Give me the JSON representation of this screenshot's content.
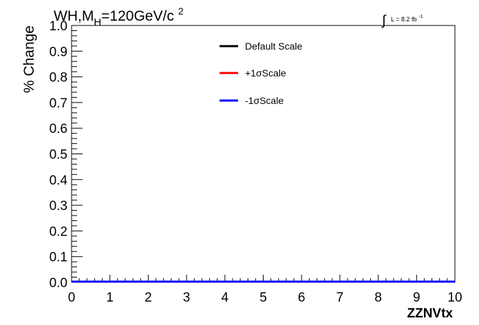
{
  "chart_data": {
    "type": "line",
    "title_main": "WH,M",
    "title_sub": "H",
    "title_rest": "=120GeV/c",
    "title_sup": "2",
    "lumi_integral": "∫",
    "lumi_label": "L = 8.2 fb",
    "lumi_sup": "-1",
    "xlabel": "ZZNVtx",
    "ylabel": "% Change",
    "xlim": [
      0,
      10
    ],
    "ylim": [
      0,
      1
    ],
    "xticks": [
      "0",
      "1",
      "2",
      "3",
      "4",
      "5",
      "6",
      "7",
      "8",
      "9",
      "10"
    ],
    "yticks": [
      "0.0",
      "0.1",
      "0.2",
      "0.3",
      "0.4",
      "0.5",
      "0.6",
      "0.7",
      "0.8",
      "0.9",
      "1.0"
    ],
    "legend_position": "top-center",
    "x": [
      0,
      10
    ],
    "series": [
      {
        "name": "Default Scale",
        "color": "#000000",
        "values": [
          0,
          0
        ]
      },
      {
        "name": "+1σScale",
        "color": "#ff0000",
        "values": [
          0,
          0
        ]
      },
      {
        "name": "-1σScale",
        "color": "#0000ff",
        "values": [
          0,
          0
        ]
      }
    ]
  }
}
